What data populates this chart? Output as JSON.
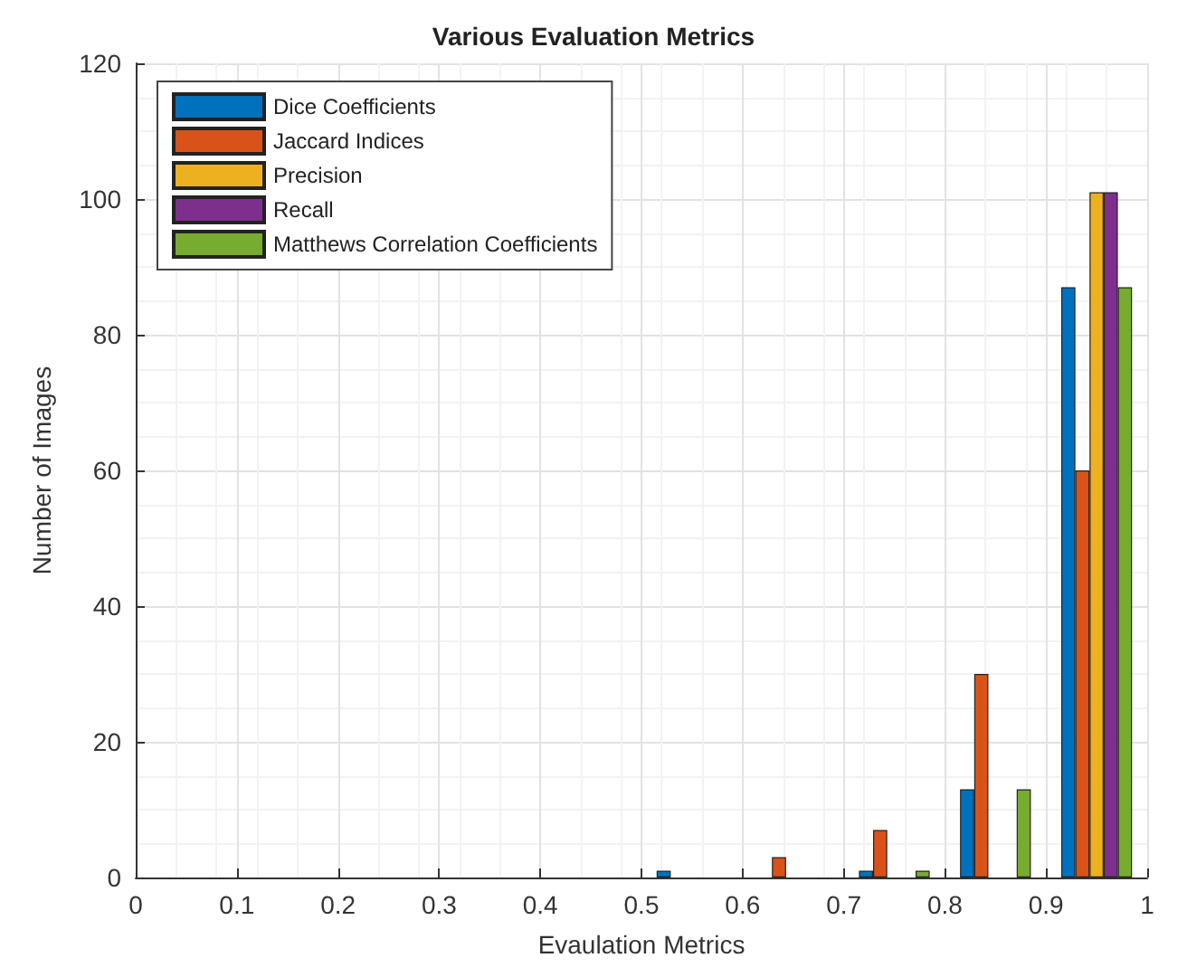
{
  "chart_data": {
    "type": "bar",
    "title": "Various Evaluation Metrics",
    "xlabel": "Evaulation Metrics",
    "ylabel": "Number of Images",
    "x": [
      0.55,
      0.65,
      0.75,
      0.85,
      0.95
    ],
    "series": [
      {
        "name": "Dice Coefficients",
        "color": "#0072bd",
        "values": [
          1,
          null,
          1,
          13,
          87
        ]
      },
      {
        "name": "Jaccard Indices",
        "color": "#d95319",
        "values": [
          null,
          3,
          7,
          30,
          60
        ]
      },
      {
        "name": "Precision",
        "color": "#edb120",
        "values": [
          null,
          null,
          null,
          null,
          101
        ]
      },
      {
        "name": "Recall",
        "color": "#7e2f8e",
        "values": [
          null,
          null,
          null,
          null,
          101
        ]
      },
      {
        "name": "Matthews Correlation Coefficients",
        "color": "#77ac30",
        "values": [
          null,
          null,
          1,
          13,
          87
        ]
      }
    ],
    "xlim": [
      0,
      1
    ],
    "xticks": [
      0,
      0.1,
      0.2,
      0.3,
      0.4,
      0.5,
      0.6,
      0.7,
      0.8,
      0.9,
      1
    ],
    "ylim": [
      0,
      120
    ],
    "yticks": [
      0,
      20,
      40,
      60,
      80,
      100,
      120
    ],
    "grid": true,
    "legend": "top left"
  }
}
